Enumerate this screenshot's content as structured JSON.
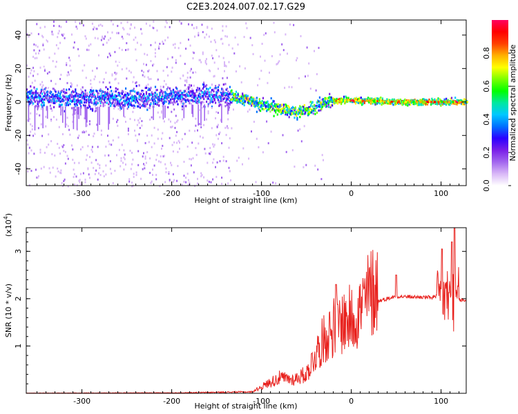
{
  "title": "C2E3.2024.007.02.17.G29",
  "chart_data": [
    {
      "type": "heatmap",
      "name": "spectrogram",
      "xlabel": "Height of straight line (km)",
      "ylabel": "Frequency (Hz)",
      "xlim": [
        -362,
        128
      ],
      "ylim": [
        -50,
        49
      ],
      "xticks": [
        -300,
        -200,
        -100,
        0,
        100
      ],
      "yticks": [
        -40,
        -20,
        0,
        20,
        40
      ],
      "colorbar": {
        "label": "Normalized spectral amplitude",
        "range": [
          0.0,
          1.0
        ],
        "ticks": [
          "0.0",
          "0.2",
          "0.4",
          "0.6",
          "0.8"
        ],
        "colors": [
          "#ffffff",
          "#d9b8f7",
          "#a266ee",
          "#7a1fe8",
          "#2b00ff",
          "#0070ff",
          "#00c8ff",
          "#00e8a0",
          "#00ff00",
          "#7cff00",
          "#ffff00",
          "#ffb000",
          "#ff4000",
          "#ff0000",
          "#ff0060"
        ]
      },
      "signal_track": [
        {
          "x": -362,
          "f": 3
        },
        {
          "x": -300,
          "f": 2
        },
        {
          "x": -200,
          "f": 3
        },
        {
          "x": -140,
          "f": 4
        },
        {
          "x": -120,
          "f": 2
        },
        {
          "x": -100,
          "f": -2
        },
        {
          "x": -80,
          "f": -4
        },
        {
          "x": -60,
          "f": -6
        },
        {
          "x": -45,
          "f": -4
        },
        {
          "x": -30,
          "f": 0
        },
        {
          "x": -10,
          "f": 1
        },
        {
          "x": 0,
          "f": 1
        },
        {
          "x": 50,
          "f": 0
        },
        {
          "x": 100,
          "f": 0
        },
        {
          "x": 128,
          "f": 0
        }
      ],
      "noise_region_x": [
        -362,
        -135
      ]
    },
    {
      "type": "line",
      "name": "snr",
      "xlabel": "Height of straight line (km)",
      "ylabel": "SNR (10 * v/v)",
      "y_multiplier": "(x10",
      "y_multiplier_exp": "4",
      "xlim": [
        -362,
        128
      ],
      "ylim": [
        0,
        3.5
      ],
      "xticks": [
        -300,
        -200,
        -100,
        0,
        100
      ],
      "yticks": [
        1,
        2,
        3
      ],
      "color": "#e8201c",
      "envelope": [
        {
          "x": -362,
          "y": 0.005
        },
        {
          "x": -200,
          "y": 0.01
        },
        {
          "x": -110,
          "y": 0.03
        },
        {
          "x": -100,
          "y": 0.12
        },
        {
          "x": -80,
          "y": 0.28
        },
        {
          "x": -65,
          "y": 0.25
        },
        {
          "x": -50,
          "y": 0.35
        },
        {
          "x": -40,
          "y": 0.7
        },
        {
          "x": -30,
          "y": 1.0
        },
        {
          "x": -20,
          "y": 1.2
        },
        {
          "x": -10,
          "y": 1.3
        },
        {
          "x": 0,
          "y": 1.35
        },
        {
          "x": 10,
          "y": 1.5
        },
        {
          "x": 20,
          "y": 1.8
        },
        {
          "x": 30,
          "y": 1.95
        },
        {
          "x": 40,
          "y": 2.0
        },
        {
          "x": 50,
          "y": 2.05
        },
        {
          "x": 60,
          "y": 2.04
        },
        {
          "x": 80,
          "y": 2.03
        },
        {
          "x": 95,
          "y": 2.03
        },
        {
          "x": 105,
          "y": 2.02
        },
        {
          "x": 115,
          "y": 2.0
        },
        {
          "x": 128,
          "y": 1.95
        }
      ],
      "spikes": [
        {
          "x": -17,
          "y": 2.3
        },
        {
          "x": 50,
          "y": 2.5
        },
        {
          "x": 101,
          "y": 3.05
        },
        {
          "x": 112,
          "y": 3.2
        },
        {
          "x": 115,
          "y": 3.5
        }
      ]
    }
  ]
}
